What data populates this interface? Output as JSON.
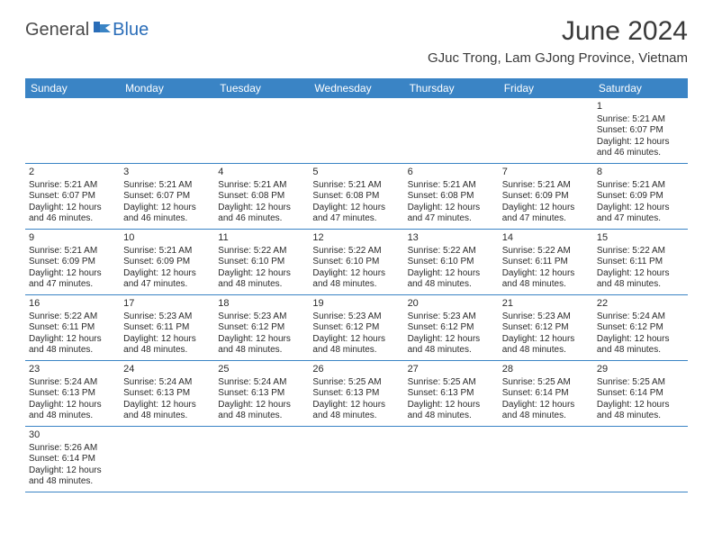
{
  "logo": {
    "general": "General",
    "blue": "Blue"
  },
  "title": "June 2024",
  "location": "GJuc Trong, Lam GJong Province, Vietnam",
  "colors": {
    "header_bg": "#3a84c5",
    "header_text": "#ffffff",
    "text": "#2a2a2a",
    "logo_gray": "#4a4a4a",
    "logo_blue": "#2a6db8",
    "background": "#ffffff",
    "border": "#3a84c5"
  },
  "layout": {
    "columns": 7,
    "cell_fontsize": 10,
    "header_fontsize": 12,
    "title_fontsize": 30,
    "location_fontsize": 15
  },
  "weekdays": [
    "Sunday",
    "Monday",
    "Tuesday",
    "Wednesday",
    "Thursday",
    "Friday",
    "Saturday"
  ],
  "weeks": [
    [
      null,
      null,
      null,
      null,
      null,
      null,
      {
        "n": "1",
        "sunrise": "Sunrise: 5:21 AM",
        "sunset": "Sunset: 6:07 PM",
        "daylight": "Daylight: 12 hours and 46 minutes."
      }
    ],
    [
      {
        "n": "2",
        "sunrise": "Sunrise: 5:21 AM",
        "sunset": "Sunset: 6:07 PM",
        "daylight": "Daylight: 12 hours and 46 minutes."
      },
      {
        "n": "3",
        "sunrise": "Sunrise: 5:21 AM",
        "sunset": "Sunset: 6:07 PM",
        "daylight": "Daylight: 12 hours and 46 minutes."
      },
      {
        "n": "4",
        "sunrise": "Sunrise: 5:21 AM",
        "sunset": "Sunset: 6:08 PM",
        "daylight": "Daylight: 12 hours and 46 minutes."
      },
      {
        "n": "5",
        "sunrise": "Sunrise: 5:21 AM",
        "sunset": "Sunset: 6:08 PM",
        "daylight": "Daylight: 12 hours and 47 minutes."
      },
      {
        "n": "6",
        "sunrise": "Sunrise: 5:21 AM",
        "sunset": "Sunset: 6:08 PM",
        "daylight": "Daylight: 12 hours and 47 minutes."
      },
      {
        "n": "7",
        "sunrise": "Sunrise: 5:21 AM",
        "sunset": "Sunset: 6:09 PM",
        "daylight": "Daylight: 12 hours and 47 minutes."
      },
      {
        "n": "8",
        "sunrise": "Sunrise: 5:21 AM",
        "sunset": "Sunset: 6:09 PM",
        "daylight": "Daylight: 12 hours and 47 minutes."
      }
    ],
    [
      {
        "n": "9",
        "sunrise": "Sunrise: 5:21 AM",
        "sunset": "Sunset: 6:09 PM",
        "daylight": "Daylight: 12 hours and 47 minutes."
      },
      {
        "n": "10",
        "sunrise": "Sunrise: 5:21 AM",
        "sunset": "Sunset: 6:09 PM",
        "daylight": "Daylight: 12 hours and 47 minutes."
      },
      {
        "n": "11",
        "sunrise": "Sunrise: 5:22 AM",
        "sunset": "Sunset: 6:10 PM",
        "daylight": "Daylight: 12 hours and 48 minutes."
      },
      {
        "n": "12",
        "sunrise": "Sunrise: 5:22 AM",
        "sunset": "Sunset: 6:10 PM",
        "daylight": "Daylight: 12 hours and 48 minutes."
      },
      {
        "n": "13",
        "sunrise": "Sunrise: 5:22 AM",
        "sunset": "Sunset: 6:10 PM",
        "daylight": "Daylight: 12 hours and 48 minutes."
      },
      {
        "n": "14",
        "sunrise": "Sunrise: 5:22 AM",
        "sunset": "Sunset: 6:11 PM",
        "daylight": "Daylight: 12 hours and 48 minutes."
      },
      {
        "n": "15",
        "sunrise": "Sunrise: 5:22 AM",
        "sunset": "Sunset: 6:11 PM",
        "daylight": "Daylight: 12 hours and 48 minutes."
      }
    ],
    [
      {
        "n": "16",
        "sunrise": "Sunrise: 5:22 AM",
        "sunset": "Sunset: 6:11 PM",
        "daylight": "Daylight: 12 hours and 48 minutes."
      },
      {
        "n": "17",
        "sunrise": "Sunrise: 5:23 AM",
        "sunset": "Sunset: 6:11 PM",
        "daylight": "Daylight: 12 hours and 48 minutes."
      },
      {
        "n": "18",
        "sunrise": "Sunrise: 5:23 AM",
        "sunset": "Sunset: 6:12 PM",
        "daylight": "Daylight: 12 hours and 48 minutes."
      },
      {
        "n": "19",
        "sunrise": "Sunrise: 5:23 AM",
        "sunset": "Sunset: 6:12 PM",
        "daylight": "Daylight: 12 hours and 48 minutes."
      },
      {
        "n": "20",
        "sunrise": "Sunrise: 5:23 AM",
        "sunset": "Sunset: 6:12 PM",
        "daylight": "Daylight: 12 hours and 48 minutes."
      },
      {
        "n": "21",
        "sunrise": "Sunrise: 5:23 AM",
        "sunset": "Sunset: 6:12 PM",
        "daylight": "Daylight: 12 hours and 48 minutes."
      },
      {
        "n": "22",
        "sunrise": "Sunrise: 5:24 AM",
        "sunset": "Sunset: 6:12 PM",
        "daylight": "Daylight: 12 hours and 48 minutes."
      }
    ],
    [
      {
        "n": "23",
        "sunrise": "Sunrise: 5:24 AM",
        "sunset": "Sunset: 6:13 PM",
        "daylight": "Daylight: 12 hours and 48 minutes."
      },
      {
        "n": "24",
        "sunrise": "Sunrise: 5:24 AM",
        "sunset": "Sunset: 6:13 PM",
        "daylight": "Daylight: 12 hours and 48 minutes."
      },
      {
        "n": "25",
        "sunrise": "Sunrise: 5:24 AM",
        "sunset": "Sunset: 6:13 PM",
        "daylight": "Daylight: 12 hours and 48 minutes."
      },
      {
        "n": "26",
        "sunrise": "Sunrise: 5:25 AM",
        "sunset": "Sunset: 6:13 PM",
        "daylight": "Daylight: 12 hours and 48 minutes."
      },
      {
        "n": "27",
        "sunrise": "Sunrise: 5:25 AM",
        "sunset": "Sunset: 6:13 PM",
        "daylight": "Daylight: 12 hours and 48 minutes."
      },
      {
        "n": "28",
        "sunrise": "Sunrise: 5:25 AM",
        "sunset": "Sunset: 6:14 PM",
        "daylight": "Daylight: 12 hours and 48 minutes."
      },
      {
        "n": "29",
        "sunrise": "Sunrise: 5:25 AM",
        "sunset": "Sunset: 6:14 PM",
        "daylight": "Daylight: 12 hours and 48 minutes."
      }
    ],
    [
      {
        "n": "30",
        "sunrise": "Sunrise: 5:26 AM",
        "sunset": "Sunset: 6:14 PM",
        "daylight": "Daylight: 12 hours and 48 minutes."
      },
      null,
      null,
      null,
      null,
      null,
      null
    ]
  ]
}
